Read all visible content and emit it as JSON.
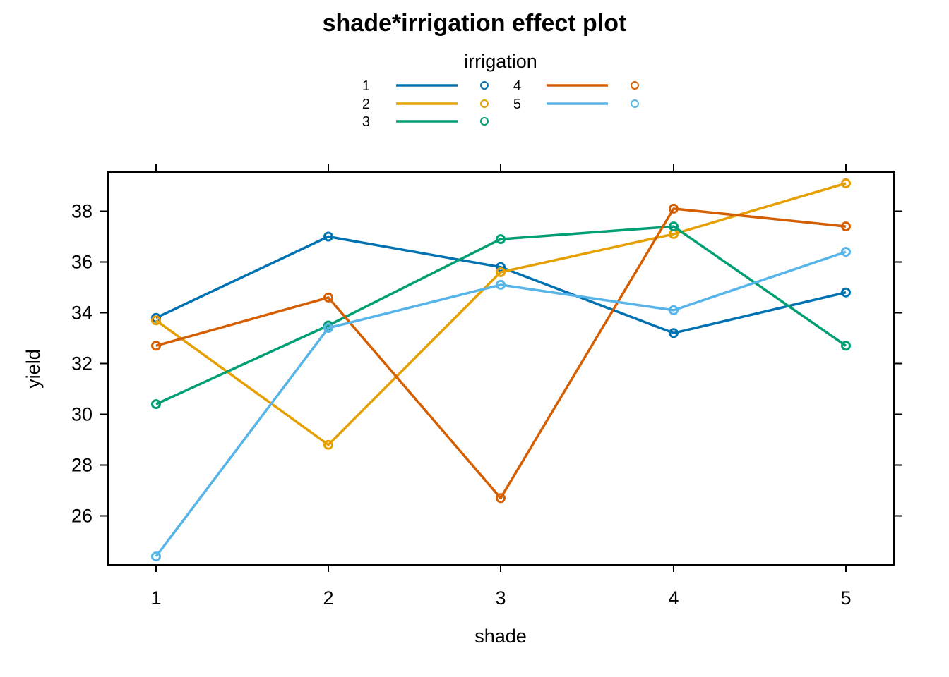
{
  "chart_data": {
    "type": "line",
    "title": "shade*irrigation effect plot",
    "xlabel": "shade",
    "ylabel": "yield",
    "categories": [
      "1",
      "2",
      "3",
      "4",
      "5"
    ],
    "yticks": [
      "26",
      "28",
      "30",
      "32",
      "34",
      "36",
      "38"
    ],
    "ylim": [
      24.4,
      39.5
    ],
    "grid": false,
    "legend": {
      "title": "irrigation",
      "placement": "top-center"
    },
    "series": [
      {
        "name": "1",
        "color": "#0072B2",
        "values": [
          33.8,
          37.0,
          35.8,
          33.2,
          34.8
        ]
      },
      {
        "name": "2",
        "color": "#E69F00",
        "values": [
          33.7,
          28.8,
          35.6,
          37.1,
          39.1
        ]
      },
      {
        "name": "3",
        "color": "#009E73",
        "values": [
          30.4,
          33.5,
          36.9,
          37.4,
          32.7
        ]
      },
      {
        "name": "4",
        "color": "#D55E00",
        "values": [
          32.7,
          34.6,
          26.7,
          38.1,
          37.4
        ]
      },
      {
        "name": "5",
        "color": "#56B4E9",
        "values": [
          24.4,
          33.4,
          35.1,
          34.1,
          36.4
        ]
      }
    ]
  }
}
